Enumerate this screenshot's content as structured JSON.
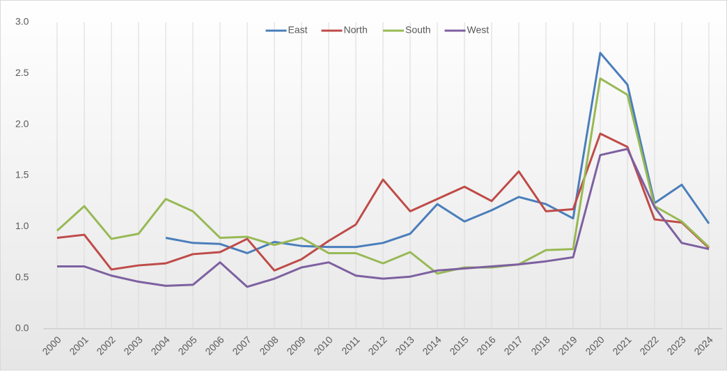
{
  "chart_data": {
    "type": "line",
    "categories": [
      "2000",
      "2001",
      "2002",
      "2003",
      "2004",
      "2005",
      "2006",
      "2007",
      "2008",
      "2009",
      "2010",
      "2011",
      "2012",
      "2013",
      "2014",
      "2015",
      "2016",
      "2017",
      "2018",
      "2019",
      "2020",
      "2021",
      "2022",
      "2023",
      "2024"
    ],
    "series": [
      {
        "name": "East",
        "color": "#4a7ebb",
        "values": [
          null,
          null,
          null,
          null,
          0.89,
          0.84,
          0.83,
          0.74,
          0.85,
          0.81,
          0.8,
          0.8,
          0.84,
          0.93,
          1.22,
          1.05,
          1.16,
          1.29,
          1.22,
          1.08,
          2.7,
          2.39,
          1.23,
          1.41,
          1.03
        ]
      },
      {
        "name": "North",
        "color": "#be4b48",
        "values": [
          0.89,
          0.92,
          0.58,
          0.62,
          0.64,
          0.73,
          0.75,
          0.88,
          0.57,
          0.68,
          0.86,
          1.02,
          1.46,
          1.15,
          1.27,
          1.39,
          1.25,
          1.54,
          1.15,
          1.17,
          1.91,
          1.78,
          1.07,
          1.04,
          0.79
        ]
      },
      {
        "name": "South",
        "color": "#98b954",
        "values": [
          0.96,
          1.2,
          0.88,
          0.93,
          1.27,
          1.15,
          0.89,
          0.9,
          0.82,
          0.89,
          0.74,
          0.74,
          0.64,
          0.75,
          0.54,
          0.6,
          0.6,
          0.63,
          0.77,
          0.78,
          2.45,
          2.29,
          1.2,
          1.05,
          0.8
        ]
      },
      {
        "name": "West",
        "color": "#7d60a0",
        "values": [
          0.61,
          0.61,
          0.52,
          0.46,
          0.42,
          0.43,
          0.65,
          0.41,
          0.49,
          0.6,
          0.65,
          0.52,
          0.49,
          0.51,
          0.57,
          0.59,
          0.61,
          0.63,
          0.66,
          0.7,
          1.7,
          1.76,
          1.19,
          0.84,
          0.78
        ]
      }
    ],
    "ylim": [
      0,
      3
    ],
    "yticks": [
      {
        "value": 0,
        "label": "0.0"
      },
      0.5,
      {
        "value": 1,
        "label": "1.0"
      },
      1.5,
      {
        "value": 2,
        "label": "2.0"
      },
      2.5,
      {
        "value": 3,
        "label": "3.0"
      }
    ],
    "grid": "x",
    "legend": "top"
  }
}
